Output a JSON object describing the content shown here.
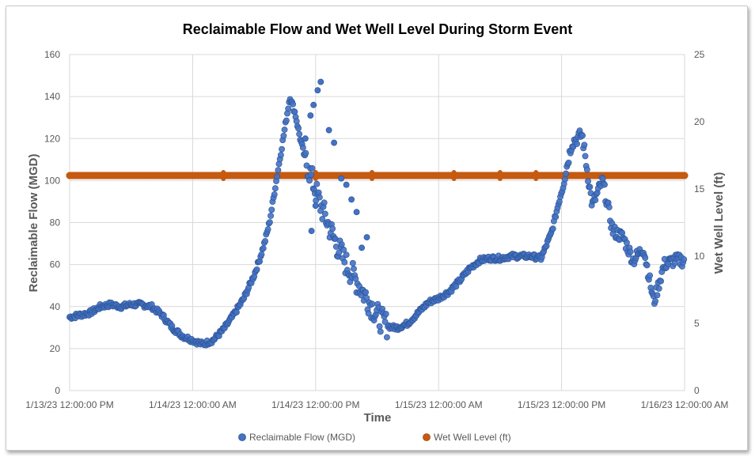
{
  "chart_data": {
    "type": "scatter",
    "title": "Reclaimable Flow and Wet Well Level During Storm Event",
    "xlabel": "Time",
    "ylabel": "Reclaimable Flow (MGD)",
    "y2label": "Wet Well Level (ft)",
    "x_ticks": [
      "1/13/23 12:00:00 PM",
      "1/14/23 12:00:00 AM",
      "1/14/23 12:00:00 PM",
      "1/15/23 12:00:00 AM",
      "1/15/23 12:00:00 PM",
      "1/16/23 12:00:00 AM"
    ],
    "y_ticks": [
      "0",
      "20",
      "40",
      "60",
      "80",
      "100",
      "120",
      "140",
      "160"
    ],
    "y2_ticks": [
      "0",
      "5",
      "10",
      "15",
      "20",
      "25"
    ],
    "xlim": [
      0,
      60
    ],
    "ylim": [
      0,
      160
    ],
    "y2lim": [
      0,
      25
    ],
    "grid": true,
    "legend_position": "bottom",
    "series": [
      {
        "name": "Reclaimable Flow (MGD)",
        "axis": "left",
        "color": "#4472C4",
        "x": [
          0,
          1,
          2,
          3,
          4,
          5,
          6,
          7,
          8,
          9,
          10,
          11,
          12,
          13,
          14,
          15,
          16,
          17,
          18,
          18.5,
          19,
          19.5,
          20,
          20.5,
          21,
          21.5,
          22,
          22.5,
          23,
          23.5,
          24,
          24.5,
          25,
          25.5,
          26,
          26.5,
          27,
          27.5,
          28,
          28.5,
          29,
          29.5,
          30,
          30.5,
          31,
          31.5,
          32,
          33,
          34,
          35,
          36,
          37,
          38,
          39,
          40,
          41,
          42,
          43,
          44,
          45,
          46,
          47,
          48,
          49,
          50,
          51,
          52,
          53,
          54,
          55,
          56,
          57,
          58,
          59,
          60
        ],
        "y": [
          35,
          36,
          37,
          40,
          41,
          40,
          41,
          41,
          40,
          36,
          30,
          26,
          24,
          22,
          24,
          29,
          36,
          44,
          55,
          62,
          70,
          80,
          95,
          110,
          125,
          140,
          132,
          120,
          110,
          103,
          95,
          88,
          82,
          76,
          70,
          65,
          60,
          56,
          52,
          48,
          44,
          40,
          36,
          33,
          31,
          30,
          30,
          32,
          37,
          42,
          44,
          47,
          52,
          58,
          62,
          63,
          63,
          64,
          64,
          64,
          63,
          75,
          95,
          118,
          122,
          88,
          100,
          76,
          73,
          62,
          68,
          42,
          60,
          62,
          62
        ],
        "point_count_note": "trend points"
      },
      {
        "name": "Wet Well Level (ft)",
        "axis": "right",
        "color": "#C55A11",
        "x": [
          0,
          60
        ],
        "y": [
          16,
          16
        ]
      }
    ]
  }
}
